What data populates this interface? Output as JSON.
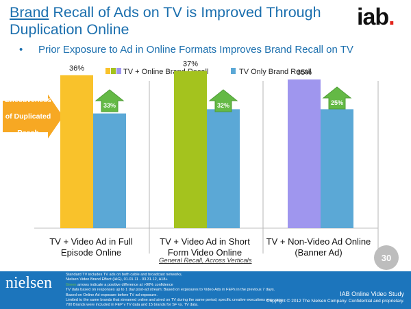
{
  "header": {
    "title_brand": "Brand",
    "title_rest": " Recall of Ads on TV is Improved Through Duplication Online",
    "logo_text": "iab",
    "logo_dot": ".",
    "subtitle_bullet": "•",
    "subtitle": "Prior Exposure to Ad in Online Formats Improves Brand Recall on TV"
  },
  "side_label": {
    "line1": "Effectiveness",
    "line2": "of Duplicated",
    "line3": "Reach"
  },
  "chart_data": {
    "type": "bar",
    "categories": [
      [
        "TV + Video Ad in Full",
        "Episode Online"
      ],
      [
        "TV + Video Ad in Short",
        "Form Video Online"
      ],
      [
        "TV + Non-Video Ad Online",
        "(Banner Ad)"
      ]
    ],
    "series": [
      {
        "name": "TV + Online Brand Recall",
        "values": [
          36,
          37,
          35
        ],
        "labels": [
          "36%",
          "37%",
          "35%"
        ]
      },
      {
        "name": "TV Only Brand Recall",
        "values": [
          27,
          28,
          28
        ],
        "labels": [
          "27%",
          "28%",
          "28%"
        ]
      }
    ],
    "online_bar_colors": [
      "#f9c22b",
      "#a4c31e",
      "#9f96ee"
    ],
    "tv_only_color": "#5ba8d6",
    "legend_online_swatches": [
      "#f9c22b",
      "#a4c31e",
      "#9f96ee"
    ],
    "lift": [
      "33%",
      "32%",
      "25%"
    ],
    "lift_arrow_color": "#64b945",
    "legend_position": "top-center",
    "ylim": [
      0,
      40
    ],
    "grid": false
  },
  "note": "General Recall, Across Verticals",
  "page_number": "30",
  "footer": {
    "brand": "nielsen",
    "notes": [
      "Standard TV includes TV ads on both cable and broadcast networks.",
      "Nielsen Video Brand Effect (IAG), 01.01.11 - 03.31.12, A18+",
      "Green arrows indicate a positive difference at >90% confidence",
      "TV data based on responses up to 1 day post-ad stream; Based on exposures to Video Ads in FEPs in the previous 7 days.",
      "Based on Online Ad exposure before TV ad exposure.",
      "Limited to the same brands that streamed online and aired on TV during the same period; specific creative executions may vary.",
      "700 Brands were included in FEP v TV data and 15 brands for SF vs. TV data."
    ],
    "green_word": "Green",
    "study": "IAB Online Video Study",
    "copyright": "Copyright © 2012 The Nielsen Company. Confidential and proprietary."
  }
}
